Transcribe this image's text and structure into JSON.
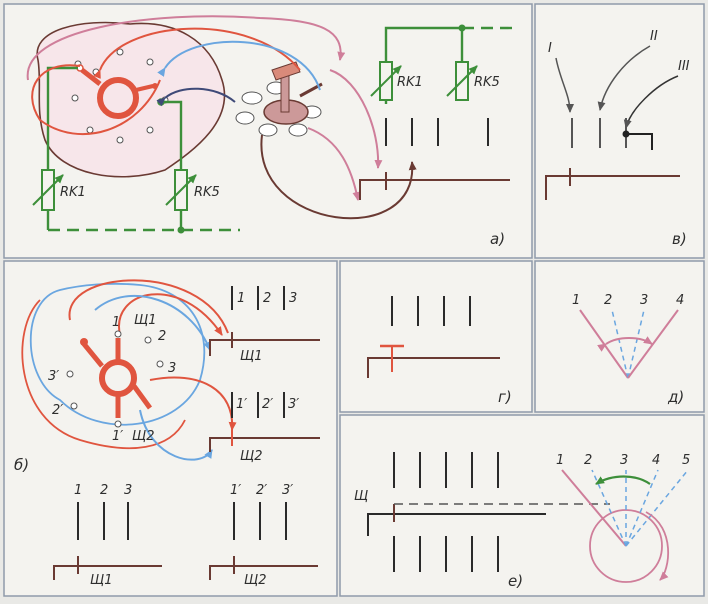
{
  "colors": {
    "bg": "#f4f3ef",
    "frame": "#8f9aaa",
    "red": "#e0553f",
    "dark_red": "#6a3a33",
    "blue": "#6aa6e0",
    "navy": "#3f4a78",
    "pink": "#cf7e9a",
    "green": "#3d8f3a",
    "ink": "#2a2a2a"
  },
  "panel_a": {
    "tag": "а)",
    "resistor_left": "RK1",
    "resistor_right": "RK5",
    "resistor_top_left": "RK1",
    "resistor_top_right": "RK5"
  },
  "panel_b": {
    "tag": "б)",
    "brush1": "Щ1",
    "brush2": "Щ2",
    "cont_1": "1",
    "cont_2": "2",
    "cont_3": "3",
    "cont_1p": "1′",
    "cont_2p": "2′",
    "cont_3p": "3′",
    "bus_top": [
      "1",
      "2",
      "3"
    ],
    "bus_top_label": "Щ1",
    "bus_mid": [
      "1′",
      "2′",
      "3′"
    ],
    "bus_mid_label": "Щ2",
    "bottom_left": [
      "1",
      "2",
      "3"
    ],
    "bottom_left_label": "Щ1",
    "bottom_right": [
      "1′",
      "2′",
      "3′"
    ],
    "bottom_right_label": "Щ2"
  },
  "panel_v": {
    "tag": "в)",
    "labels": [
      "I",
      "II",
      "III"
    ]
  },
  "panel_g": {
    "tag": "г)"
  },
  "panel_d": {
    "tag": "д)",
    "labels": [
      "1",
      "2",
      "3",
      "4"
    ]
  },
  "panel_e": {
    "tag": "е)",
    "labels": [
      "1",
      "2",
      "3",
      "4",
      "5"
    ],
    "brush": "Щ"
  }
}
